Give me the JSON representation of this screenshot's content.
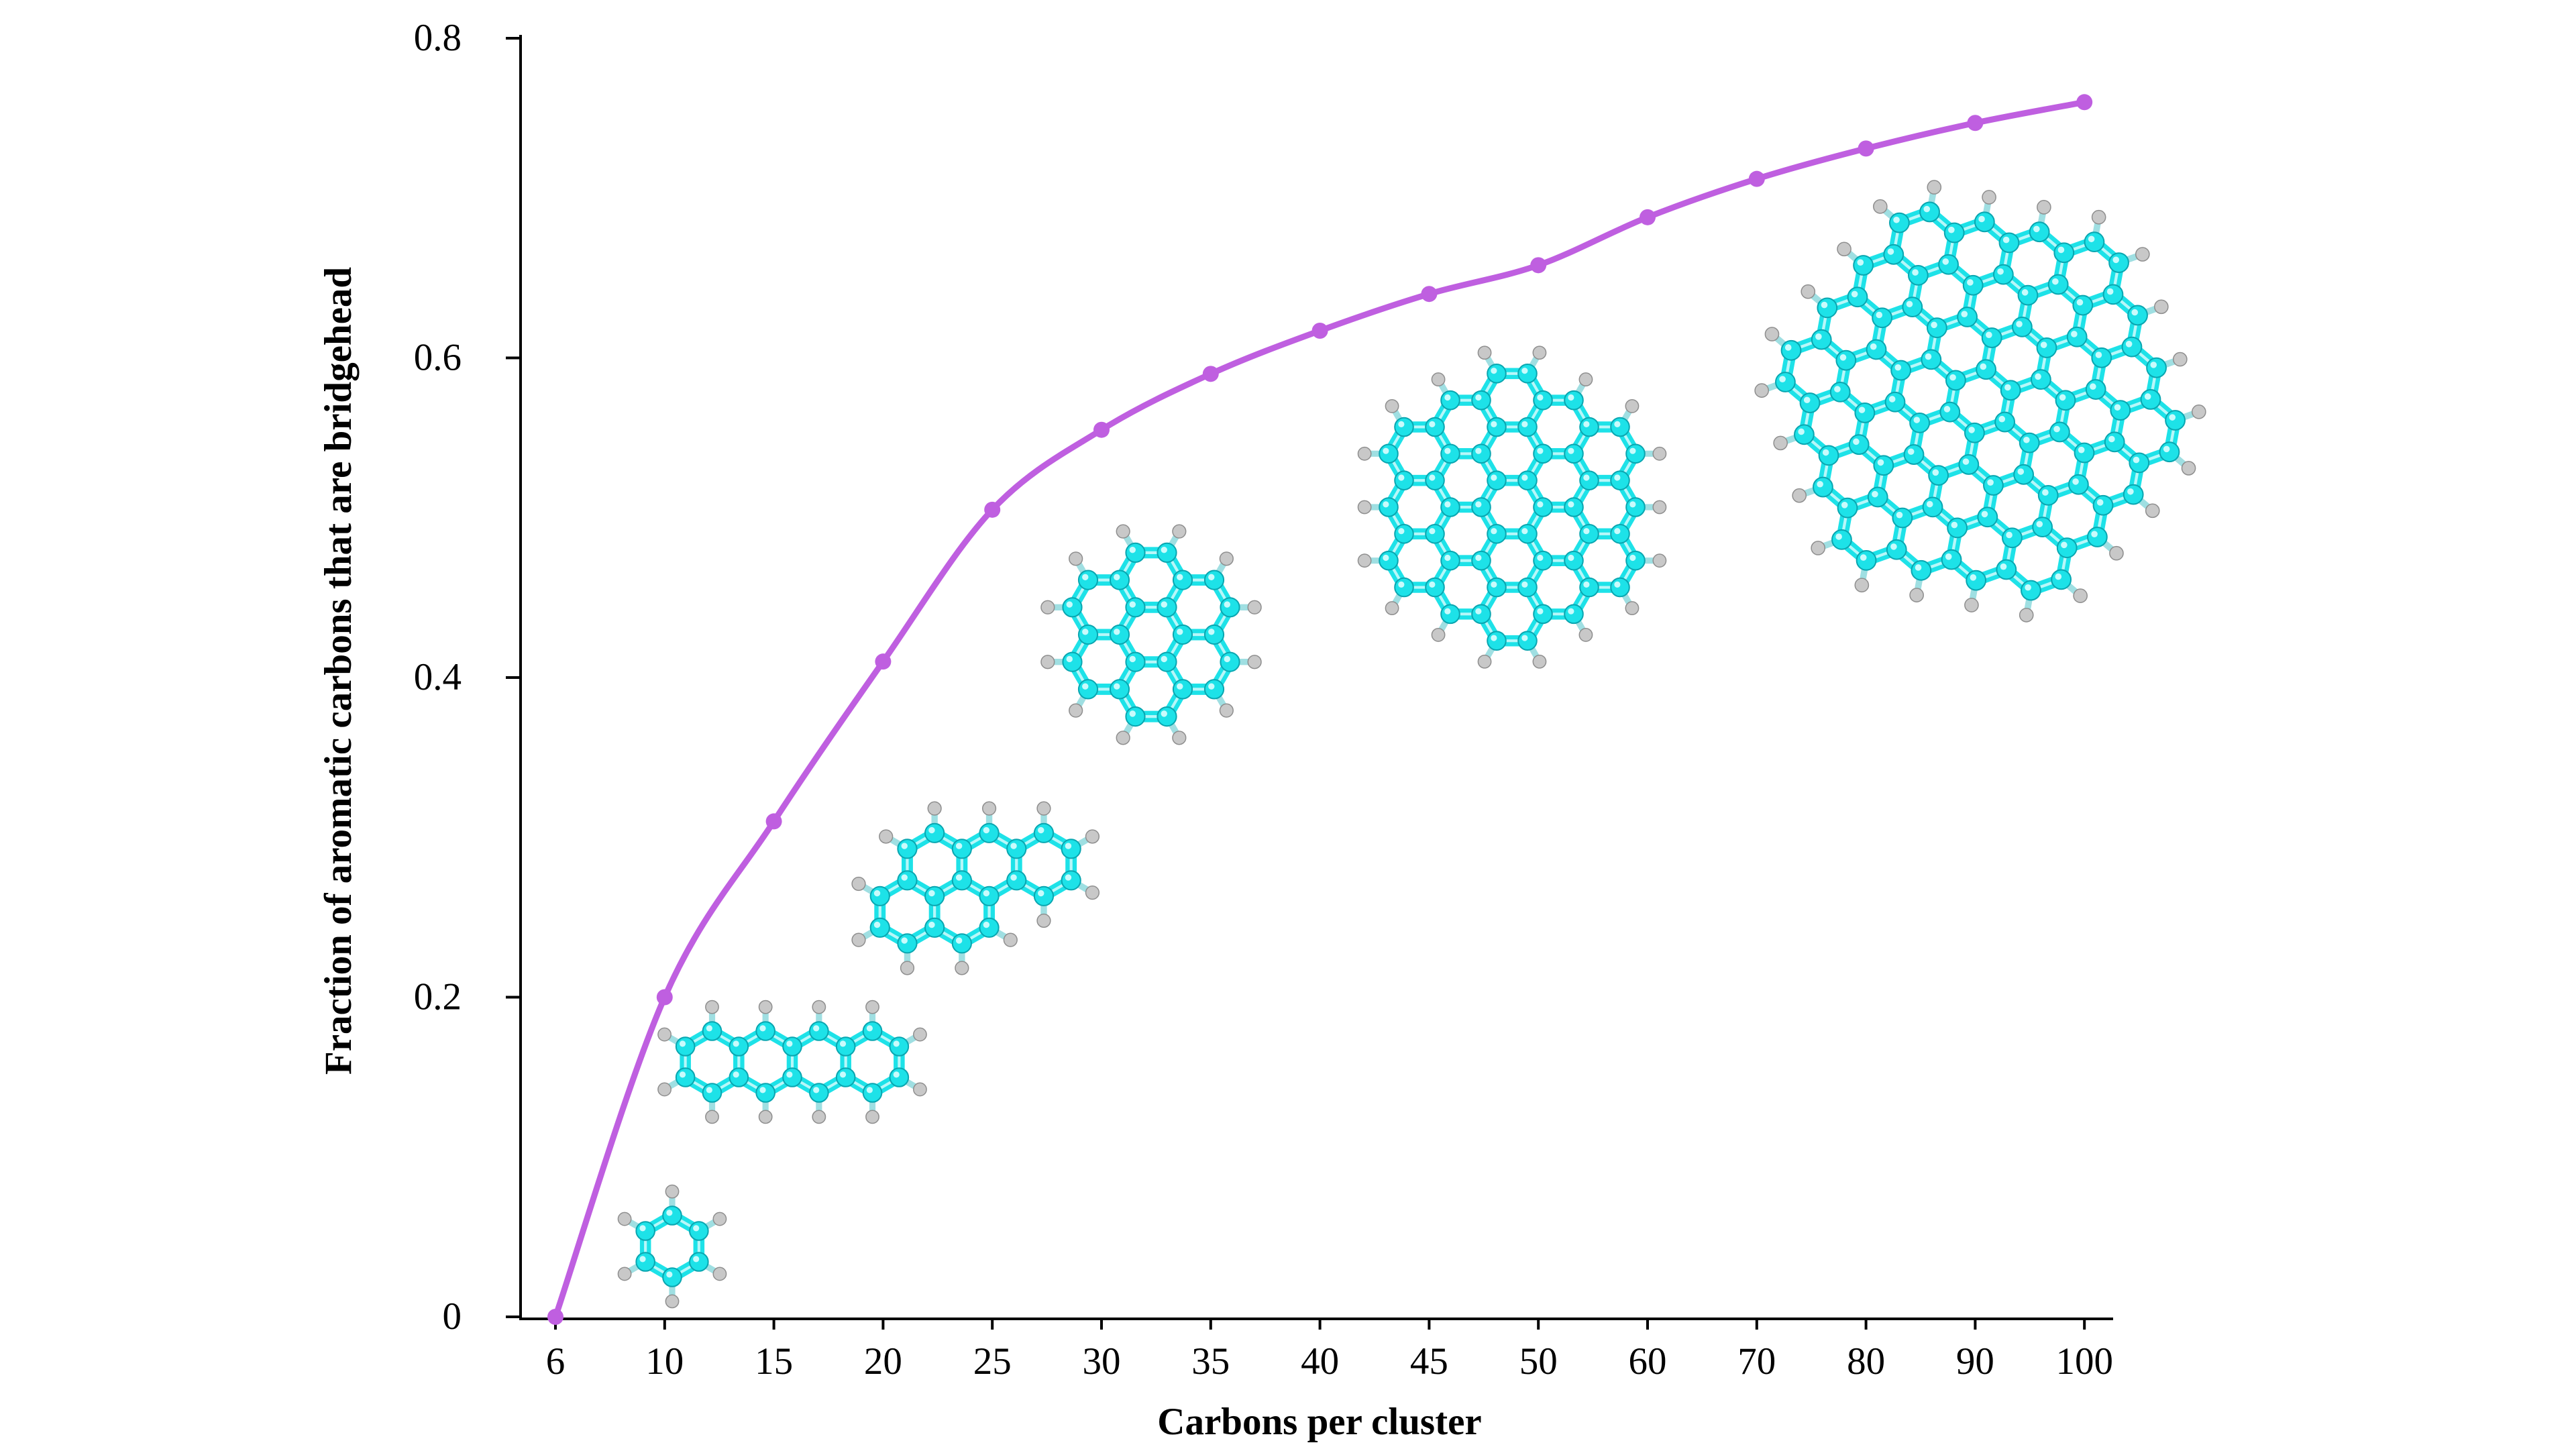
{
  "chart_data": {
    "type": "line",
    "title": "",
    "xlabel": "Carbons per cluster",
    "ylabel": "Fraction of aromatic carbons that are bridgehead",
    "x_tick_labels": [
      "6",
      "10",
      "15",
      "20",
      "25",
      "30",
      "35",
      "40",
      "45",
      "50",
      "60",
      "70",
      "80",
      "90",
      "100"
    ],
    "y_tick_labels": [
      "0",
      "0.2",
      "0.4",
      "0.6",
      "0.8"
    ],
    "y_ticks": [
      0,
      0.2,
      0.4,
      0.6,
      0.8
    ],
    "ylim": [
      0,
      0.8
    ],
    "x_scale": "categorical",
    "grid": false,
    "legend": "none",
    "series": [
      {
        "color": "#bf5fe0",
        "x": [
          6,
          10,
          15,
          20,
          25,
          30,
          35,
          40,
          45,
          50,
          60,
          70,
          80,
          90,
          100
        ],
        "values": [
          0.0,
          0.2,
          0.31,
          0.41,
          0.505,
          0.555,
          0.59,
          0.617,
          0.64,
          0.658,
          0.688,
          0.712,
          0.731,
          0.747,
          0.76
        ]
      }
    ],
    "molecule_icons": [
      {
        "name": "benzene-icon",
        "carbons": 6
      },
      {
        "name": "tetracene-icon",
        "carbons": 18
      },
      {
        "name": "dibenzo-pah-icon",
        "carbons": 22
      },
      {
        "name": "coronene-icon",
        "carbons": 24
      },
      {
        "name": "c54-pah-icon",
        "carbons": 54
      },
      {
        "name": "c96-pah-icon",
        "carbons": 96
      }
    ],
    "colors": {
      "carbon": "#1de2e8",
      "carbon_shade": "#0aa6b0",
      "hydrogen": "#c8c8c8",
      "line": "#bf5fe0"
    }
  }
}
